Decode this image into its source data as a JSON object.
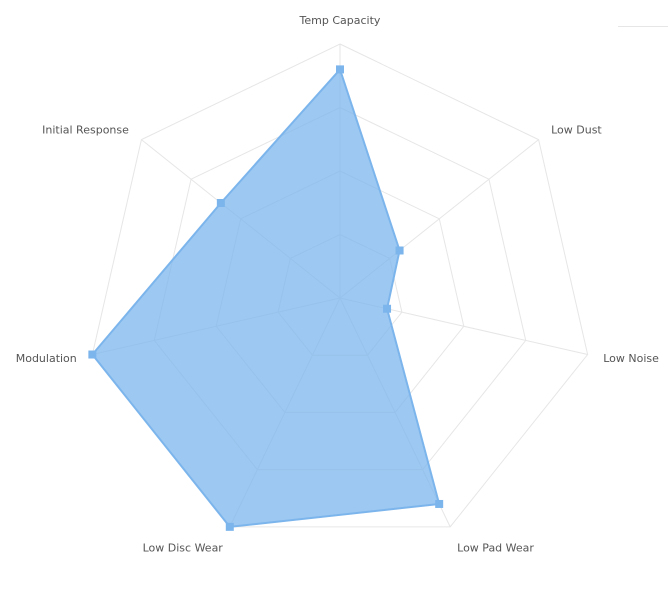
{
  "chart_data": {
    "type": "radar",
    "categories": [
      "Temp Capacity",
      "Low Dust",
      "Low Noise",
      "Low Pad Wear",
      "Low Disc Wear",
      "Modulation",
      "Initial Response"
    ],
    "series": [
      {
        "values": [
          9,
          3,
          1.9,
          9,
          10,
          10,
          6
        ]
      }
    ],
    "ylim": [
      0,
      10
    ],
    "rings": 4,
    "grid": true,
    "colors": {
      "series": "#7cb5ec",
      "grid": "#e6e6e6",
      "label": "#555555"
    }
  }
}
